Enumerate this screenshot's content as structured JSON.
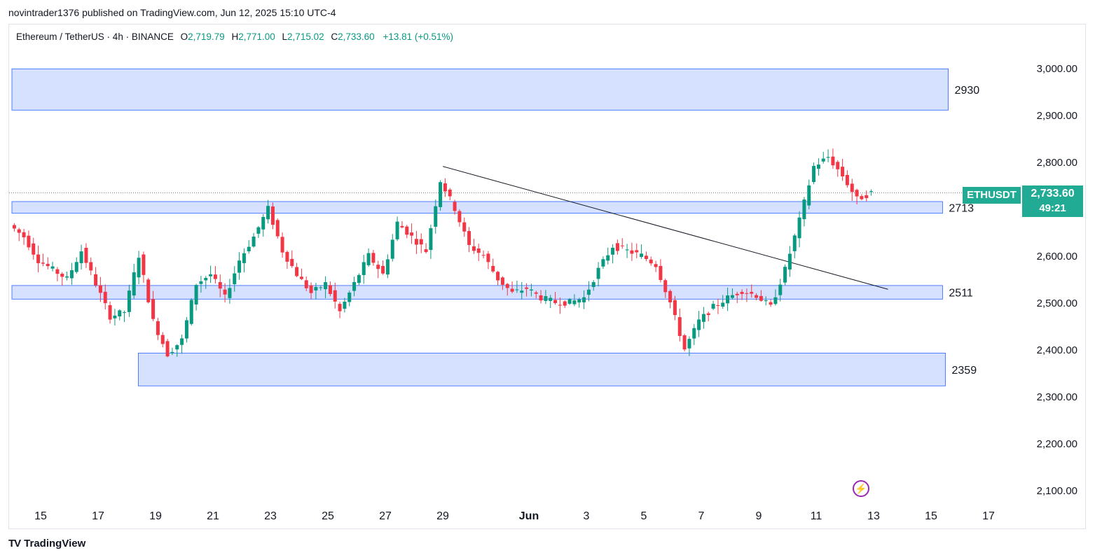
{
  "header": {
    "text": "novintrader1376 published on TradingView.com, Jun 12, 2025 15:10 UTC-4"
  },
  "symbol": {
    "name": "Ethereum / TetherUS · 4h · BINANCE",
    "o_label": "O",
    "o": "2,719.79",
    "h_label": "H",
    "h": "2,771.00",
    "l_label": "L",
    "l": "2,715.02",
    "c_label": "C",
    "c": "2,733.60",
    "change": "+13.81 (+0.51%)"
  },
  "ticker_tag": "ETHUSDT",
  "last_price": "2,733.60",
  "countdown": "49:21",
  "zones": [
    {
      "label": "2930",
      "low": 2910,
      "high": 2998,
      "from_day": -1,
      "to_day": 31.6
    },
    {
      "label": "2713",
      "low": 2690,
      "high": 2715,
      "from_day": -1,
      "to_day": 31.4
    },
    {
      "label": "2511",
      "low": 2507,
      "high": 2536,
      "from_day": -1,
      "to_day": 31.4
    },
    {
      "label": "2359",
      "low": 2322,
      "high": 2392,
      "from_day": 3.4,
      "to_day": 31.5
    }
  ],
  "footer": {
    "brand": "TradingView",
    "logo_text": "TV"
  },
  "colors": {
    "up": "#089981",
    "down": "#f23645",
    "zone_fill": "#d6e0ff",
    "zone_border": "#2962ff",
    "tag": "#22ab94",
    "alert": "#9c27b0"
  },
  "chart_data": {
    "type": "candlestick",
    "title": "Ethereum / TetherUS · 4h · BINANCE",
    "y_ticks": [
      "3,000.00",
      "2,900.00",
      "2,800.00",
      "2,700.00",
      "2,600.00",
      "2,500.00",
      "2,400.00",
      "2,300.00",
      "2,200.00",
      "2,100.00"
    ],
    "y_tick_values": [
      3000,
      2900,
      2800,
      2700,
      2600,
      2500,
      2400,
      2300,
      2200,
      2100
    ],
    "ylim": [
      2055,
      3070
    ],
    "x_ticks": [
      "15",
      "17",
      "19",
      "21",
      "23",
      "25",
      "27",
      "29",
      "Jun",
      "3",
      "5",
      "7",
      "9",
      "11",
      "13",
      "15",
      "17"
    ],
    "x_tick_days": [
      0,
      2,
      4,
      6,
      8,
      10,
      12,
      14,
      17,
      19,
      21,
      23,
      25,
      27,
      29,
      31,
      33
    ],
    "x_axis_note": "days after May 15, 2025",
    "trendline": {
      "start": {
        "day": 14.0,
        "price": 2790
      },
      "end": {
        "day": 29.5,
        "price": 2528
      }
    },
    "candles_4h": [
      [
        -1.0,
        2665
      ],
      [
        -0.5,
        2640
      ],
      [
        0.0,
        2590
      ],
      [
        0.5,
        2570
      ],
      [
        1.0,
        2550
      ],
      [
        1.5,
        2610
      ],
      [
        2.0,
        2540
      ],
      [
        2.5,
        2470
      ],
      [
        3.0,
        2480
      ],
      [
        3.5,
        2600
      ],
      [
        4.0,
        2460
      ],
      [
        4.5,
        2390
      ],
      [
        5.0,
        2420
      ],
      [
        5.5,
        2540
      ],
      [
        6.0,
        2560
      ],
      [
        6.5,
        2510
      ],
      [
        7.0,
        2590
      ],
      [
        7.5,
        2640
      ],
      [
        8.0,
        2700
      ],
      [
        8.5,
        2610
      ],
      [
        9.0,
        2560
      ],
      [
        9.5,
        2520
      ],
      [
        10.0,
        2540
      ],
      [
        10.5,
        2480
      ],
      [
        11.0,
        2540
      ],
      [
        11.5,
        2600
      ],
      [
        12.0,
        2560
      ],
      [
        12.5,
        2670
      ],
      [
        13.0,
        2640
      ],
      [
        13.5,
        2610
      ],
      [
        14.0,
        2760
      ],
      [
        14.5,
        2700
      ],
      [
        15.0,
        2620
      ],
      [
        15.5,
        2600
      ],
      [
        16.0,
        2550
      ],
      [
        16.5,
        2520
      ],
      [
        17.0,
        2530
      ],
      [
        17.5,
        2510
      ],
      [
        18.0,
        2500
      ],
      [
        18.5,
        2500
      ],
      [
        19.0,
        2510
      ],
      [
        19.5,
        2570
      ],
      [
        20.0,
        2620
      ],
      [
        20.5,
        2610
      ],
      [
        21.0,
        2600
      ],
      [
        21.5,
        2580
      ],
      [
        22.0,
        2500
      ],
      [
        22.5,
        2400
      ],
      [
        23.0,
        2460
      ],
      [
        23.5,
        2490
      ],
      [
        24.0,
        2510
      ],
      [
        24.5,
        2525
      ],
      [
        25.0,
        2515
      ],
      [
        25.5,
        2490
      ],
      [
        26.0,
        2570
      ],
      [
        26.5,
        2675
      ],
      [
        27.0,
        2790
      ],
      [
        27.5,
        2810
      ],
      [
        28.0,
        2770
      ],
      [
        28.5,
        2720
      ],
      [
        29.0,
        2733.6
      ]
    ]
  }
}
